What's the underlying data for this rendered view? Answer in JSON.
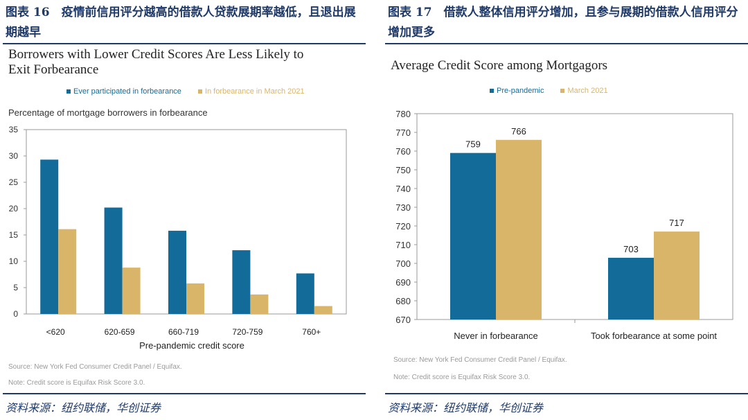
{
  "figures": [
    {
      "caption": "图表 16　疫情前信用评分越高的借款人贷款展期率越低，且退出展期越早",
      "chart_title_line1": "Borrowers with Lower Credit Scores Are Less Likely to",
      "chart_title_line2": "Exit Forbearance",
      "subtitle": "Percentage of mortgage borrowers in forbearance",
      "source_note": "Source: New York Fed Consumer Credit Panel / Equifax.",
      "score_note": "Note: Credit score is Equifax Risk Score 3.0.",
      "source_cn": "资料来源：纽约联储，华创证券"
    },
    {
      "caption": "图表 17　借款人整体信用评分增加，且参与展期的借款人信用评分增加更多",
      "chart_title_line1": "Average Credit Score among Mortgagors",
      "source_note": "Source: New York Fed Consumer Credit Panel / Equifax.",
      "score_note": "Note: Credit score is Equifax Risk Score 3.0.",
      "source_cn": "资料来源：纽约联储，华创证券"
    }
  ],
  "chart_data": [
    {
      "type": "bar",
      "title": "Borrowers with Lower Credit Scores Are Less Likely to Exit Forbearance",
      "ylabel": "Percentage of mortgage borrowers in forbearance",
      "xlabel": "Pre-pandemic credit score",
      "categories": [
        "<620",
        "620-659",
        "660-719",
        "720-759",
        "760+"
      ],
      "series": [
        {
          "name": "Ever participated in forbearance",
          "values": [
            29.3,
            20.2,
            15.8,
            12.1,
            7.7
          ]
        },
        {
          "name": "In forbearance in March 2021",
          "values": [
            16.1,
            8.8,
            5.8,
            3.7,
            1.5
          ]
        }
      ],
      "ylim": [
        0,
        35
      ],
      "yticks": [
        0,
        5,
        10,
        15,
        20,
        25,
        30,
        35
      ],
      "colors": [
        "#136b99",
        "#d9b56a"
      ],
      "legend": "top"
    },
    {
      "type": "bar",
      "title": "Average Credit Score among Mortgagors",
      "categories": [
        "Never in forbearance",
        "Took forbearance at some point"
      ],
      "series": [
        {
          "name": "Pre-pandemic",
          "values": [
            759,
            703
          ]
        },
        {
          "name": "March 2021",
          "values": [
            766,
            717
          ]
        }
      ],
      "ylim": [
        670,
        780
      ],
      "yticks": [
        670,
        680,
        690,
        700,
        710,
        720,
        730,
        740,
        750,
        760,
        770,
        780
      ],
      "colors": [
        "#136b99",
        "#d9b56a"
      ],
      "legend": "top"
    }
  ]
}
